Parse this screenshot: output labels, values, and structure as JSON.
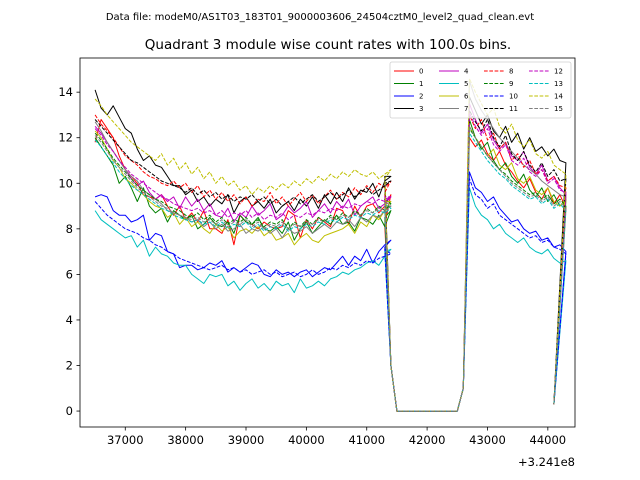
{
  "figure": {
    "suptitle": "Data file: modeM0/AS1T03_183T01_9000003606_24504cztM0_level2_quad_clean.evt"
  },
  "chart_data": {
    "type": "line",
    "title": "Quadrant 3 module wise count rates with 100.0s bins.",
    "xlabel": "",
    "ylabel": "",
    "x_offset_label": "+3.241e8",
    "xlim": [
      36250,
      44450
    ],
    "ylim": [
      -0.7,
      15.5
    ],
    "xticks": [
      37000,
      38000,
      39000,
      40000,
      41000,
      42000,
      43000,
      44000
    ],
    "xtick_labels": [
      "37000",
      "38000",
      "39000",
      "40000",
      "41000",
      "42000",
      "43000",
      "44000"
    ],
    "yticks": [
      0,
      2,
      4,
      6,
      8,
      10,
      12,
      14
    ],
    "ytick_labels": [
      "0",
      "2",
      "4",
      "6",
      "8",
      "10",
      "12",
      "14"
    ],
    "x_start": 36500,
    "x_step": 100,
    "legend_placement": "upper-right",
    "series": [
      {
        "name": "0",
        "color": "#ff0000",
        "style": "solid",
        "gap": 8.2,
        "values": [
          11.8,
          12.8,
          12.4,
          12.0,
          11.2,
          10.6,
          10.3,
          10.0,
          9.5,
          9.4,
          9.3,
          9.5,
          9.0,
          8.6,
          9.0,
          8.4,
          8.7,
          8.3,
          8.8,
          8.0,
          8.0,
          7.8,
          8.4,
          7.3,
          8.6,
          8.3,
          8.2,
          8.0,
          8.3,
          8.1,
          8.0,
          8.1,
          8.8,
          8.6,
          7.6,
          8.4,
          8.0,
          8.5,
          8.3,
          8.1,
          8.9,
          8.8,
          8.2,
          9.0,
          8.5,
          9.0,
          9.1,
          8.7,
          9.0,
          9.5
        ]
      },
      {
        "name": "1",
        "color": "#008000",
        "style": "solid",
        "gap": 8.5,
        "values": [
          12.0,
          11.6,
          11.2,
          10.8,
          10.0,
          10.3,
          9.8,
          9.2,
          9.8,
          9.0,
          8.7,
          8.9,
          8.3,
          8.8,
          8.6,
          8.4,
          8.6,
          8.0,
          8.2,
          8.5,
          8.2,
          8.1,
          8.3,
          7.8,
          8.6,
          8.3,
          8.2,
          8.5,
          8.0,
          7.9,
          8.1,
          7.8,
          8.3,
          7.5,
          8.0,
          8.3,
          7.8,
          8.1,
          8.4,
          8.2,
          8.6,
          8.2,
          8.3,
          7.9,
          8.5,
          8.4,
          8.2,
          8.6,
          8.1,
          8.8
        ]
      },
      {
        "name": "2",
        "color": "#0000ff",
        "style": "solid",
        "gap": 7.2,
        "values": [
          9.4,
          9.5,
          9.4,
          8.8,
          8.6,
          8.6,
          8.3,
          8.4,
          8.6,
          7.5,
          7.8,
          7.7,
          7.0,
          6.9,
          6.3,
          6.4,
          6.4,
          6.2,
          6.3,
          6.5,
          6.4,
          6.6,
          6.1,
          6.3,
          6.1,
          6.3,
          6.5,
          6.4,
          6.0,
          5.9,
          6.2,
          6.0,
          6.1,
          5.9,
          6.1,
          6.2,
          5.9,
          6.1,
          6.3,
          6.2,
          6.5,
          6.8,
          6.4,
          6.8,
          6.6,
          7.1,
          6.5,
          7.0,
          7.3,
          7.5
        ]
      },
      {
        "name": "3",
        "color": "#000000",
        "style": "solid",
        "gap": 10.3,
        "values": [
          14.1,
          13.3,
          13.0,
          13.4,
          12.9,
          12.4,
          12.2,
          11.5,
          11.0,
          11.2,
          10.8,
          10.7,
          10.3,
          9.9,
          9.9,
          9.5,
          9.7,
          9.2,
          9.4,
          9.0,
          9.3,
          9.1,
          9.5,
          8.7,
          9.2,
          9.4,
          9.0,
          9.2,
          8.9,
          9.3,
          8.7,
          9.0,
          9.2,
          8.8,
          9.3,
          9.0,
          9.4,
          8.9,
          9.5,
          9.1,
          9.6,
          9.2,
          9.8,
          9.3,
          9.7,
          9.6,
          10.0,
          9.4,
          10.1,
          10.3
        ]
      },
      {
        "name": "4",
        "color": "#bf00bf",
        "style": "solid",
        "gap": 9.3,
        "values": [
          12.5,
          12.2,
          11.8,
          11.4,
          11.0,
          10.6,
          10.2,
          9.9,
          10.1,
          9.6,
          9.3,
          9.5,
          9.2,
          9.4,
          8.9,
          9.4,
          9.0,
          9.3,
          8.8,
          9.1,
          8.6,
          8.5,
          8.9,
          8.3,
          8.7,
          8.5,
          9.0,
          8.6,
          8.8,
          9.1,
          8.4,
          8.6,
          9.0,
          8.7,
          8.9,
          9.2,
          8.5,
          8.8,
          9.1,
          8.7,
          9.2,
          8.9,
          9.3,
          8.6,
          9.0,
          9.2,
          9.4,
          8.9,
          9.1,
          9.4
        ]
      },
      {
        "name": "5",
        "color": "#00bfbf",
        "style": "solid",
        "gap": 7.0,
        "values": [
          8.8,
          8.4,
          8.2,
          8.0,
          7.8,
          7.6,
          7.7,
          7.2,
          7.5,
          6.8,
          7.2,
          6.9,
          6.8,
          6.5,
          6.4,
          6.4,
          6.0,
          5.8,
          5.6,
          6.0,
          5.9,
          6.0,
          5.5,
          5.7,
          5.3,
          5.6,
          5.8,
          5.4,
          5.6,
          5.3,
          5.7,
          5.5,
          5.6,
          5.2,
          5.8,
          5.4,
          5.5,
          5.7,
          5.5,
          5.8,
          5.9,
          6.1,
          6.0,
          6.2,
          6.3,
          6.5,
          6.6,
          6.4,
          6.8,
          7.1
        ]
      },
      {
        "name": "6",
        "color": "#bfbf00",
        "style": "solid",
        "gap": 9.2,
        "values": [
          12.3,
          12.0,
          11.5,
          11.0,
          10.7,
          10.2,
          10.0,
          9.7,
          9.5,
          9.2,
          9.0,
          8.9,
          8.5,
          8.7,
          8.2,
          8.5,
          8.1,
          8.3,
          8.0,
          7.8,
          8.2,
          7.9,
          8.1,
          7.6,
          7.9,
          8.0,
          7.8,
          8.1,
          7.7,
          7.9,
          7.5,
          7.6,
          7.8,
          7.3,
          7.6,
          7.8,
          7.5,
          7.4,
          7.7,
          7.8,
          7.9,
          8.0,
          8.2,
          7.8,
          8.3,
          8.1,
          8.6,
          8.4,
          8.8,
          9.2
        ]
      },
      {
        "name": "7",
        "color": "#808080",
        "style": "solid",
        "gap": 9.0,
        "values": [
          12.7,
          12.3,
          11.8,
          11.4,
          11.0,
          10.6,
          10.3,
          10.1,
          9.7,
          9.5,
          9.3,
          9.1,
          8.8,
          8.7,
          8.6,
          8.5,
          8.3,
          8.4,
          8.1,
          8.3,
          8.0,
          8.2,
          7.9,
          8.0,
          8.2,
          7.8,
          8.0,
          7.9,
          8.1,
          7.8,
          8.0,
          7.6,
          8.0,
          7.8,
          7.9,
          8.1,
          7.8,
          8.0,
          8.2,
          8.0,
          8.3,
          8.2,
          8.4,
          8.1,
          8.5,
          8.3,
          8.6,
          8.5,
          8.8,
          9.0
        ]
      },
      {
        "name": "8",
        "color": "#ff0000",
        "style": "dashed",
        "gap": 9.6,
        "values": [
          13.0,
          12.6,
          12.3,
          12.0,
          11.6,
          11.2,
          11.0,
          10.8,
          10.5,
          10.3,
          10.2,
          10.0,
          9.9,
          10.1,
          9.8,
          10.0,
          9.6,
          9.9,
          9.4,
          9.7,
          9.3,
          9.6,
          9.2,
          9.5,
          9.1,
          9.4,
          9.0,
          9.3,
          9.2,
          9.6,
          9.1,
          9.4,
          9.0,
          9.3,
          9.6,
          9.2,
          9.5,
          9.1,
          9.4,
          9.7,
          9.3,
          9.6,
          9.4,
          9.8,
          9.5,
          9.9,
          9.6,
          10.0,
          9.8,
          10.1
        ]
      },
      {
        "name": "9",
        "color": "#008000",
        "style": "dashed",
        "gap": 9.3,
        "values": [
          12.2,
          11.9,
          11.5,
          11.1,
          10.8,
          10.5,
          10.2,
          9.9,
          9.7,
          9.5,
          9.3,
          9.2,
          9.0,
          8.9,
          8.8,
          8.6,
          8.5,
          8.7,
          8.4,
          8.6,
          8.3,
          8.5,
          8.2,
          8.4,
          8.3,
          8.5,
          8.2,
          8.4,
          8.1,
          8.3,
          8.2,
          8.4,
          8.0,
          8.3,
          8.1,
          8.4,
          8.2,
          8.5,
          8.3,
          8.6,
          8.4,
          8.7,
          8.5,
          8.8,
          8.6,
          8.9,
          8.7,
          9.0,
          8.8,
          9.1
        ]
      },
      {
        "name": "10",
        "color": "#0000ff",
        "style": "dashed",
        "gap": 7.1,
        "values": [
          9.2,
          8.9,
          8.6,
          8.4,
          8.2,
          8.0,
          7.9,
          7.8,
          7.6,
          7.5,
          7.3,
          7.2,
          7.0,
          6.9,
          6.7,
          6.6,
          6.5,
          6.4,
          6.3,
          6.2,
          6.3,
          6.4,
          6.2,
          6.3,
          6.1,
          6.2,
          6.0,
          6.1,
          6.2,
          6.0,
          6.1,
          5.9,
          6.0,
          6.1,
          5.9,
          6.0,
          6.2,
          6.0,
          6.1,
          6.3,
          6.2,
          6.4,
          6.3,
          6.5,
          6.4,
          6.6,
          6.5,
          6.7,
          6.8,
          6.9
        ]
      },
      {
        "name": "11",
        "color": "#000000",
        "style": "dashed",
        "gap": 10.0,
        "values": [
          12.8,
          12.5,
          12.2,
          11.9,
          11.6,
          11.3,
          11.0,
          10.9,
          10.7,
          10.5,
          10.3,
          10.1,
          10.0,
          9.9,
          9.8,
          9.6,
          9.8,
          9.5,
          9.7,
          9.4,
          9.6,
          9.3,
          9.5,
          9.2,
          9.4,
          9.3,
          9.5,
          9.2,
          9.4,
          9.1,
          9.3,
          9.0,
          9.2,
          9.4,
          9.1,
          9.3,
          9.5,
          9.2,
          9.4,
          9.6,
          9.3,
          9.5,
          9.7,
          9.4,
          9.6,
          9.8,
          9.5,
          9.7,
          9.9,
          10.1
        ]
      },
      {
        "name": "12",
        "color": "#bf00bf",
        "style": "dashed",
        "gap": 9.4,
        "values": [
          12.4,
          12.1,
          11.7,
          11.4,
          11.0,
          10.7,
          10.4,
          10.2,
          10.0,
          9.8,
          9.6,
          9.4,
          9.3,
          9.1,
          9.0,
          8.9,
          8.8,
          8.9,
          8.7,
          8.8,
          8.6,
          8.8,
          8.5,
          8.7,
          8.6,
          8.8,
          8.5,
          8.7,
          8.4,
          8.6,
          8.5,
          8.7,
          8.4,
          8.6,
          8.5,
          8.7,
          8.6,
          8.8,
          8.7,
          8.9,
          8.8,
          9.0,
          8.9,
          9.1,
          9.0,
          9.2,
          9.1,
          9.3,
          9.2,
          9.4
        ]
      },
      {
        "name": "13",
        "color": "#00bfbf",
        "style": "dashed",
        "gap": 9.1,
        "values": [
          11.9,
          11.6,
          11.2,
          10.9,
          10.5,
          10.2,
          9.9,
          9.7,
          9.5,
          9.3,
          9.1,
          8.9,
          8.8,
          8.6,
          8.5,
          8.4,
          8.3,
          8.4,
          8.2,
          8.3,
          8.1,
          8.3,
          8.0,
          8.2,
          8.1,
          8.3,
          8.0,
          8.2,
          7.9,
          8.1,
          8.0,
          8.2,
          7.9,
          8.1,
          8.0,
          8.2,
          8.1,
          8.3,
          8.2,
          8.4,
          8.3,
          8.5,
          8.4,
          8.6,
          8.5,
          8.7,
          8.6,
          8.8,
          8.7,
          8.9
        ]
      },
      {
        "name": "14",
        "color": "#bfbf00",
        "style": "dashed",
        "gap": 10.2,
        "values": [
          13.7,
          13.4,
          13.0,
          12.7,
          12.4,
          12.1,
          11.8,
          11.6,
          11.4,
          11.2,
          11.0,
          11.3,
          10.8,
          11.1,
          10.6,
          10.9,
          10.4,
          10.7,
          10.2,
          10.5,
          10.0,
          10.3,
          9.9,
          10.1,
          9.7,
          9.9,
          9.5,
          9.8,
          9.6,
          9.9,
          9.7,
          10.0,
          9.8,
          10.1,
          9.9,
          10.2,
          10.0,
          10.3,
          10.1,
          10.4,
          10.2,
          10.5,
          10.3,
          10.6,
          10.4,
          10.3,
          10.5,
          10.2,
          10.4,
          10.6
        ]
      },
      {
        "name": "15",
        "color": "#808080",
        "style": "dashed",
        "gap": 9.2,
        "values": [
          12.1,
          11.8,
          11.4,
          11.0,
          10.7,
          10.4,
          10.1,
          9.8,
          9.6,
          9.4,
          9.2,
          9.0,
          8.9,
          8.7,
          8.6,
          8.5,
          8.4,
          8.5,
          8.3,
          8.4,
          8.2,
          8.4,
          8.1,
          8.3,
          8.2,
          8.4,
          8.1,
          8.3,
          8.0,
          8.2,
          8.1,
          8.3,
          8.0,
          8.2,
          8.1,
          8.3,
          8.2,
          8.4,
          8.3,
          8.5,
          8.4,
          8.6,
          8.5,
          8.7,
          8.6,
          8.8,
          8.7,
          8.9,
          8.8,
          9.0
        ]
      }
    ],
    "after_gap_values": {
      "0": [
        12.0,
        11.6,
        11.9,
        11.3,
        11.0,
        11.4,
        10.8,
        10.5,
        10.1,
        9.8,
        10.2,
        9.6,
        9.3,
        9.8,
        9.1,
        9.5,
        8.9
      ],
      "1": [
        12.8,
        12.0,
        11.5,
        11.8,
        11.0,
        10.6,
        10.9,
        10.3,
        10.0,
        10.4,
        9.7,
        9.4,
        9.8,
        9.2,
        9.5,
        9.0,
        9.3
      ],
      "2": [
        10.5,
        9.8,
        9.6,
        9.2,
        9.4,
        8.9,
        8.6,
        8.3,
        8.4,
        8.0,
        7.8,
        7.9,
        7.5,
        7.6,
        7.2,
        7.3,
        7.0
      ],
      "3": [
        13.8,
        13.2,
        12.6,
        13.0,
        12.3,
        12.0,
        12.5,
        11.8,
        12.2,
        11.5,
        12.0,
        11.4,
        11.6,
        11.2,
        11.5,
        11.0,
        10.9
      ],
      "4": [
        13.5,
        12.8,
        12.2,
        12.6,
        11.9,
        11.5,
        11.8,
        11.2,
        11.0,
        11.4,
        10.7,
        10.4,
        10.8,
        10.1,
        10.3,
        9.8,
        9.5
      ],
      "5": [
        9.8,
        9.0,
        8.6,
        8.4,
        8.0,
        8.2,
        7.8,
        7.6,
        7.4,
        7.6,
        7.2,
        7.0,
        6.9,
        7.1,
        6.7,
        6.5,
        6.6
      ],
      "6": [
        12.5,
        12.0,
        11.6,
        11.2,
        11.5,
        10.8,
        10.6,
        10.9,
        10.2,
        10.0,
        10.3,
        9.7,
        9.5,
        9.8,
        9.2,
        9.0,
        9.3
      ],
      "7": [
        14.5,
        13.7,
        13.2,
        12.8,
        12.4,
        12.0,
        11.7,
        11.4,
        11.1,
        10.8,
        10.6,
        10.4,
        10.1,
        9.9,
        9.7,
        9.5,
        9.4
      ],
      "8": [
        13.0,
        12.4,
        12.8,
        11.9,
        12.2,
        11.5,
        11.8,
        11.0,
        11.3,
        10.7,
        11.0,
        10.4,
        10.6,
        10.1,
        10.3,
        9.9,
        9.8
      ],
      "9": [
        12.4,
        12.0,
        11.6,
        11.2,
        10.9,
        10.6,
        10.4,
        10.1,
        9.9,
        9.7,
        9.5,
        9.6,
        9.3,
        9.5,
        9.1,
        9.3,
        9.0
      ],
      "10": [
        10.2,
        9.5,
        9.3,
        8.9,
        9.1,
        8.6,
        8.4,
        8.2,
        8.0,
        7.8,
        7.6,
        7.7,
        7.4,
        7.5,
        7.2,
        7.1,
        6.9
      ],
      "11": [
        13.2,
        12.7,
        12.3,
        12.8,
        12.0,
        11.6,
        12.1,
        11.3,
        11.0,
        11.4,
        10.8,
        10.5,
        10.9,
        10.3,
        10.6,
        10.1,
        10.2
      ],
      "12": [
        13.1,
        12.5,
        12.1,
        12.4,
        11.7,
        11.4,
        11.7,
        11.0,
        10.8,
        11.1,
        10.5,
        10.3,
        10.6,
        10.0,
        10.2,
        9.7,
        9.6
      ],
      "13": [
        12.2,
        11.8,
        11.4,
        11.0,
        10.7,
        10.4,
        10.2,
        9.9,
        9.7,
        9.5,
        9.3,
        9.4,
        9.1,
        9.3,
        8.9,
        9.1,
        8.8
      ],
      "14": [
        14.6,
        14.0,
        13.5,
        13.0,
        13.3,
        12.5,
        12.2,
        12.6,
        11.9,
        11.6,
        11.9,
        11.3,
        11.1,
        11.4,
        10.8,
        10.6,
        10.4
      ],
      "15": [
        12.5,
        12.0,
        11.6,
        11.2,
        10.9,
        10.6,
        10.3,
        10.0,
        9.8,
        9.6,
        9.4,
        9.5,
        9.2,
        9.4,
        9.0,
        9.2,
        8.9
      ]
    },
    "gap_x": [
      41400,
      41500,
      42500,
      42600
    ],
    "gap_values": [
      2.0,
      0.0,
      0.0,
      1.0
    ],
    "end_value": 0.3
  }
}
